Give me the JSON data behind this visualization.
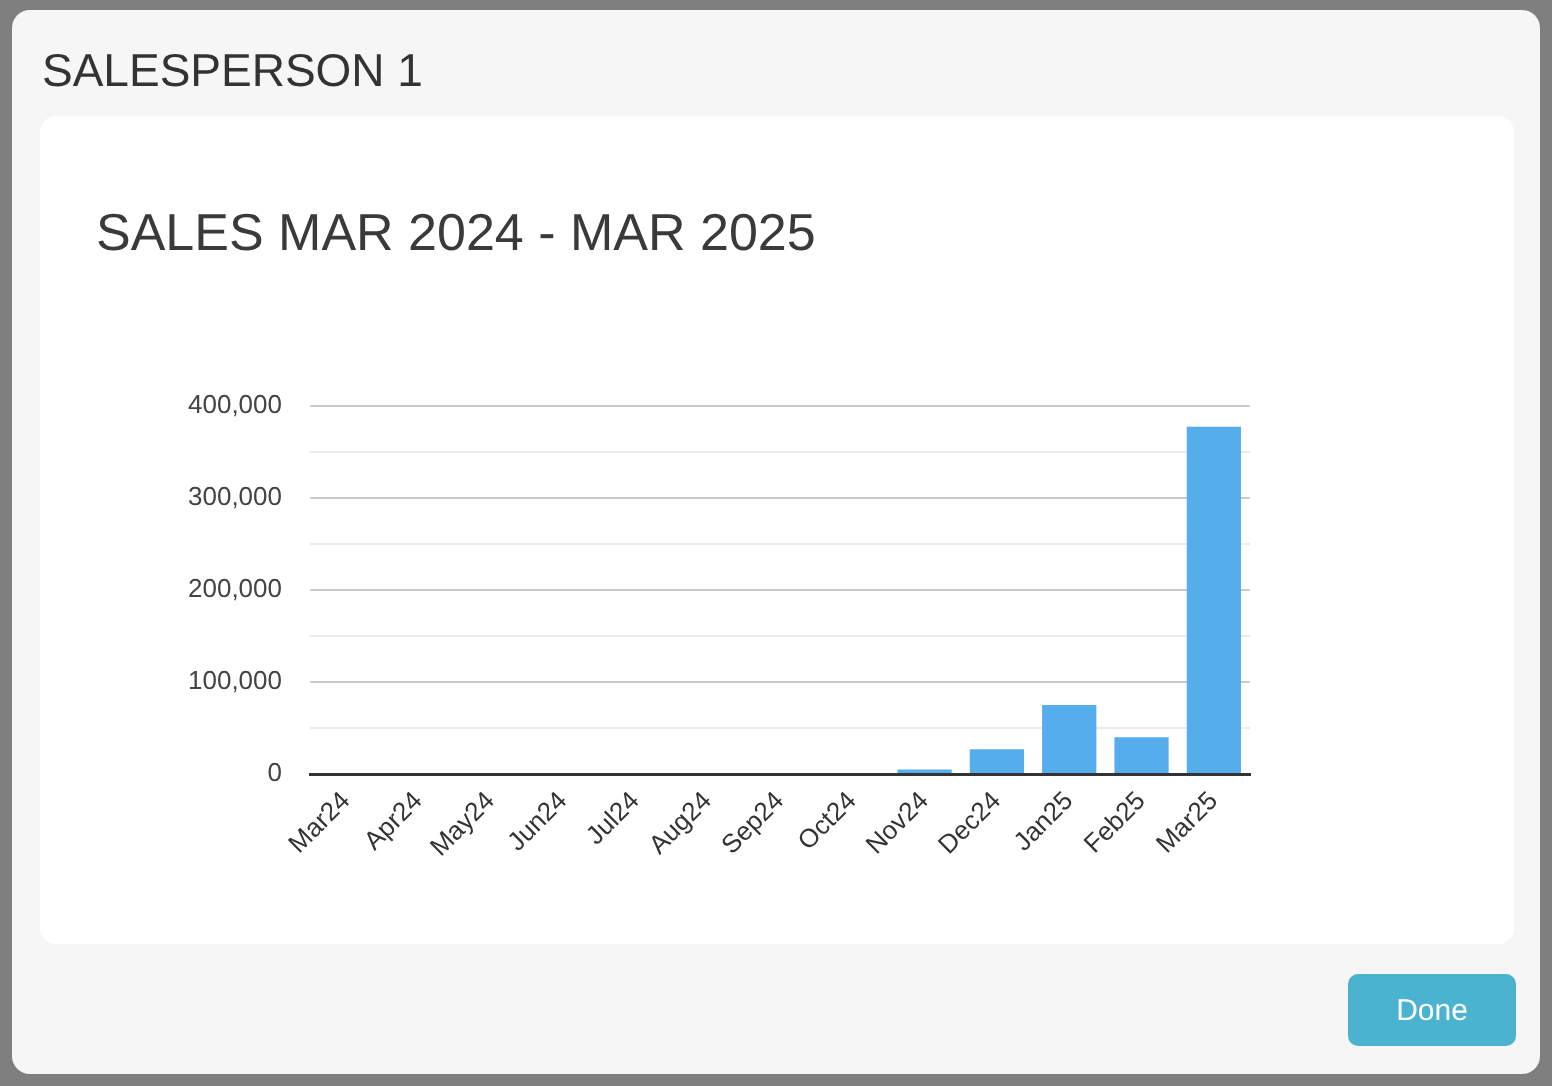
{
  "chart_data": {
    "type": "bar",
    "title": "SALES MAR 2024 - MAR 2025",
    "annotations": [
      "SALESPERSON 1",
      "Done"
    ],
    "categories": [
      "Mar24",
      "Apr24",
      "May24",
      "Jun24",
      "Jul24",
      "Aug24",
      "Sep24",
      "Oct24",
      "Nov24",
      "Dec24",
      "Jan25",
      "Feb25",
      "Mar25"
    ],
    "values": [
      0,
      0,
      0,
      0,
      0,
      0,
      0,
      0,
      5000,
      27000,
      75000,
      40000,
      377000
    ],
    "color": "#56adeb",
    "ylim": [
      0,
      400000
    ],
    "yticks": [
      0,
      {
        "value": 50000,
        "label": null
      },
      {
        "value": 100000,
        "label": "100,000"
      },
      {
        "value": 150000,
        "label": null
      },
      {
        "value": 200000,
        "label": "200,000"
      },
      {
        "value": 250000,
        "label": null
      },
      {
        "value": 300000,
        "label": "300,000"
      },
      {
        "value": 350000,
        "label": null
      },
      {
        "value": 400000,
        "label": "400,000"
      }
    ],
    "grid": "y"
  }
}
